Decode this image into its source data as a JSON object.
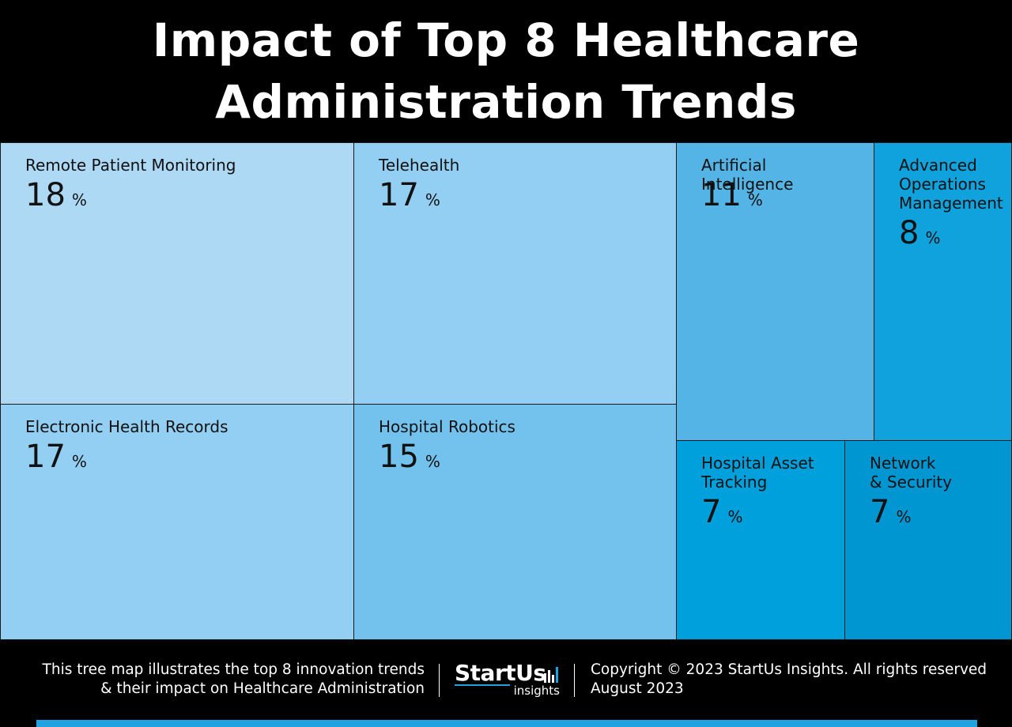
{
  "title": "Impact of Top 8 Healthcare Administration Trends",
  "chart_data": {
    "type": "treemap",
    "unit": "%",
    "items": [
      {
        "label": "Remote Patient Monitoring",
        "value": 18,
        "color": "#aed9f5"
      },
      {
        "label": "Telehealth",
        "value": 17,
        "color": "#92cff2"
      },
      {
        "label": "Electronic Health Records",
        "value": 17,
        "color": "#92cff2"
      },
      {
        "label": "Hospital Robotics",
        "value": 15,
        "color": "#72c2ed"
      },
      {
        "label": "Artificial Intelligence",
        "value": 11,
        "color": "#54b4e5"
      },
      {
        "label": "Advanced Operations Management",
        "value": 8,
        "color": "#0fa2dc"
      },
      {
        "label": "Hospital Asset Tracking",
        "value": 7,
        "color": "#00a0dc"
      },
      {
        "label": "Network & Security",
        "value": 7,
        "color": "#0096d2"
      }
    ]
  },
  "footer": {
    "description_line1": "This tree map illustrates the top 8 innovation trends",
    "description_line2": "& their impact on Healthcare Administration",
    "logo_main": "StartUs",
    "logo_sub": "insights",
    "copyright": "Copyright © 2023 StartUs Insights. All rights reserved",
    "date": "August 2023"
  },
  "colors": {
    "background": "#000000",
    "accent": "#1fa3e0",
    "text_on_tiles": "#111111"
  }
}
